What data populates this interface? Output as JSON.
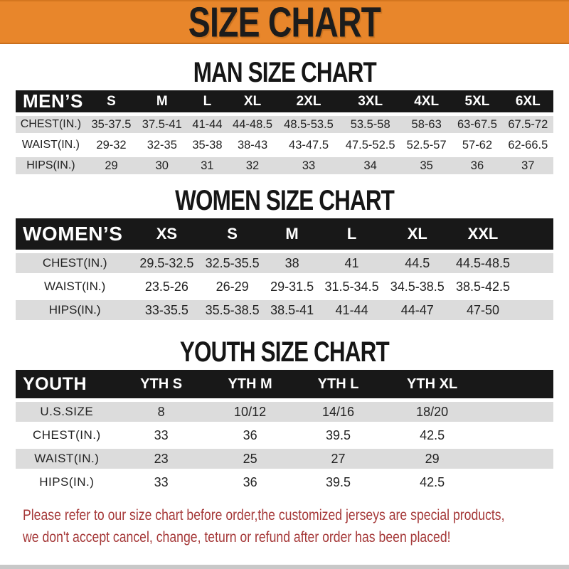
{
  "colors": {
    "accent_orange": "#e8862b",
    "bar_black": "#181818",
    "row_gray": "#dcdcdc",
    "warning_red": "#a53838",
    "text_black": "#1b1b1b",
    "strip_gray": "#c8c8c8"
  },
  "banner": {
    "title": "SIZE CHART"
  },
  "sections": {
    "men": {
      "heading": "MAN SIZE CHART",
      "table": {
        "corner": "MEN’S",
        "columns": [
          "S",
          "M",
          "L",
          "XL",
          "2XL",
          "3XL",
          "4XL",
          "5XL",
          "6XL"
        ],
        "spacer": false,
        "rows": [
          {
            "label": "CHEST(IN.)",
            "values": [
              "35-37.5",
              "37.5-41",
              "41-44",
              "44-48.5",
              "48.5-53.5",
              "53.5-58",
              "58-63",
              "63-67.5",
              "67.5-72"
            ]
          },
          {
            "label": "WAIST(IN.)",
            "values": [
              "29-32",
              "32-35",
              "35-38",
              "38-43",
              "43-47.5",
              "47.5-52.5",
              "52.5-57",
              "57-62",
              "62-66.5"
            ]
          },
          {
            "label": "HIPS(IN.)",
            "values": [
              "29",
              "30",
              "31",
              "32",
              "33",
              "34",
              "35",
              "36",
              "37"
            ]
          }
        ]
      }
    },
    "women": {
      "heading": "WOMEN SIZE CHART",
      "table": {
        "corner": "WOMEN’S",
        "columns": [
          "XS",
          "S",
          "M",
          "L",
          "XL",
          "XXL"
        ],
        "spacer": true,
        "rows": [
          {
            "label": "CHEST(IN.)",
            "values": [
              "29.5-32.5",
              "32.5-35.5",
              "38",
              "41",
              "44.5",
              "44.5-48.5"
            ]
          },
          {
            "label": "WAIST(IN.)",
            "values": [
              "23.5-26",
              "26-29",
              "29-31.5",
              "31.5-34.5",
              "34.5-38.5",
              "38.5-42.5"
            ]
          },
          {
            "label": "HIPS(IN.)",
            "values": [
              "33-35.5",
              "35.5-38.5",
              "38.5-41",
              "41-44",
              "44-47",
              "47-50"
            ]
          }
        ]
      }
    },
    "youth": {
      "heading": "YOUTH SIZE CHART",
      "table": {
        "corner": "YOUTH",
        "columns": [
          "YTH S",
          "YTH M",
          "YTH L",
          "YTH XL"
        ],
        "spacer": true,
        "rows": [
          {
            "label": "U.S.SIZE",
            "values": [
              "8",
              "10/12",
              "14/16",
              "18/20"
            ]
          },
          {
            "label": "CHEST(IN.)",
            "values": [
              "33",
              "36",
              "39.5",
              "42.5"
            ]
          },
          {
            "label": "WAIST(IN.)",
            "values": [
              "23",
              "25",
              "27",
              "29"
            ]
          },
          {
            "label": "HIPS(IN.)",
            "values": [
              "33",
              "36",
              "39.5",
              "42.5"
            ]
          }
        ]
      }
    }
  },
  "footer": {
    "line1": "Please refer to our size chart before order,the customized jerseys are special products,",
    "line2": "we don't accept cancel, change, teturn or refund after order has been placed!"
  }
}
